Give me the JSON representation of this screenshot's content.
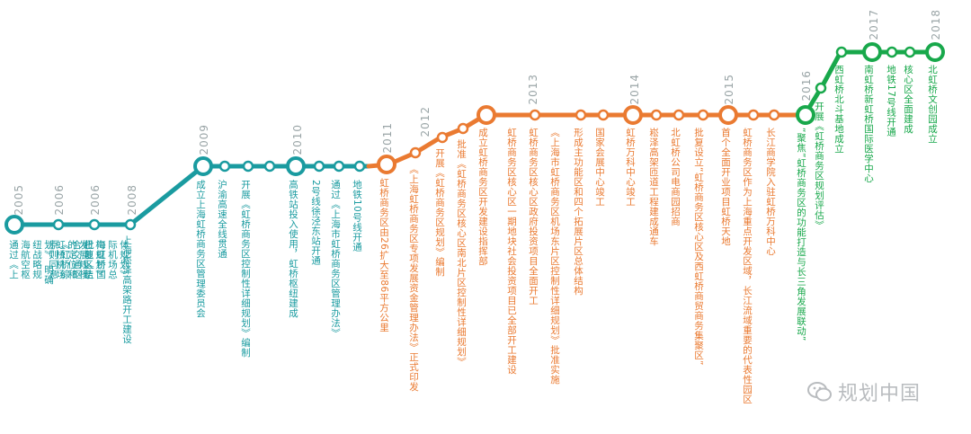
{
  "timeline": {
    "colors": {
      "teal": "#1a9ba0",
      "orange": "#ea7a31",
      "green": "#18a84b",
      "watermark": "#b9bcbf"
    },
    "years": [
      "2005",
      "2006",
      "2006",
      "2008",
      "2009",
      "2010",
      "2011",
      "2012",
      "2013",
      "2014",
      "2015",
      "2016",
      "2017",
      "2018"
    ],
    "events": [
      {
        "id": "e2005",
        "lines": [
          "通过《上",
          "海航空枢",
          "纽战略规",
          "划》，明确",
          "虹桥机场",
          "的定位和",
          "发展规模"
        ]
      },
      {
        "id": "e2006a",
        "lines": [
          "原则同意",
          "《虹桥综",
          "合交通枢",
          "纽地区结",
          "构规划》"
        ]
      },
      {
        "id": "e2006b",
        "lines": [
          "批复《上",
          "海虹桥国",
          "际机场总",
          "体规划》"
        ]
      },
      {
        "id": "e2008",
        "lines": [
          "上海崧泽高架路开工建设"
        ]
      },
      {
        "id": "e2009a",
        "lines": [
          "成立上海虹桥商务区管理委员会"
        ]
      },
      {
        "id": "e2009b",
        "lines": [
          "沪渝高速全线贯通"
        ]
      },
      {
        "id": "e2009c",
        "lines": [
          "开展《虹桥商务区控制性详细规划》编制"
        ]
      },
      {
        "id": "e2010a",
        "lines": [
          "高铁站投入使用，虹桥枢纽建成"
        ]
      },
      {
        "id": "e2010b",
        "lines": [
          "2号线徐泾东站开通"
        ]
      },
      {
        "id": "e2010c",
        "lines": [
          "通过《上海市虹桥商务区管理办法》"
        ]
      },
      {
        "id": "e2010d",
        "lines": [
          "地铁10号线开通"
        ]
      },
      {
        "id": "e2011",
        "lines": [
          "虹桥商务区由26扩大至86平方公里"
        ]
      },
      {
        "id": "e2011b",
        "lines": [
          "《上海虹桥商务区专项发展资金管理办法》正式印发"
        ]
      },
      {
        "id": "e2012a",
        "lines": [
          "开展《虹桥商务区规划》编制"
        ]
      },
      {
        "id": "e2012b",
        "lines": [
          "批准《虹桥商务区核心区南北片区控制性详细规划》"
        ]
      },
      {
        "id": "e2012c",
        "lines": [
          "成立虹桥商务区开发建设指挥部"
        ]
      },
      {
        "id": "e2013a",
        "lines": [
          "虹桥商务区核心区一期地块社会投资项目已全部开工建设"
        ]
      },
      {
        "id": "e2013b",
        "lines": [
          "虹桥商务区核心区政府投资项目全面开工"
        ]
      },
      {
        "id": "e2013c",
        "lines": [
          "《上海市虹桥商务区机场东片区控制性详细规划》批准实施"
        ]
      },
      {
        "id": "e2013d",
        "lines": [
          "形成主功能区和四个拓展片区总体结构"
        ]
      },
      {
        "id": "e2014a",
        "lines": [
          "国家会展中心竣工"
        ]
      },
      {
        "id": "e2014b",
        "lines": [
          "虹桥万科中心竣工"
        ]
      },
      {
        "id": "e2014c",
        "lines": [
          "崧泽高架匝道工程建成通车"
        ]
      },
      {
        "id": "e2014d",
        "lines": [
          "北虹桥公司电商园招商"
        ]
      },
      {
        "id": "e2014e",
        "lines": [
          "批复设立“虹桥商务区核心区及西虹桥商贸商务集聚区”"
        ]
      },
      {
        "id": "e2015a",
        "lines": [
          "首个全面开业项目虹桥天地"
        ]
      },
      {
        "id": "e2015b",
        "lines": [
          "虹桥商务区作为上海重点开发区域，长江流域重要的代表性园区"
        ]
      },
      {
        "id": "e2015c",
        "lines": [
          "长江商学院入驻虹桥万科中心"
        ]
      },
      {
        "id": "e2016a",
        "lines": [
          "“聚焦”虹桥商务区的功能打造与长三角发展联动”"
        ]
      },
      {
        "id": "e2016b",
        "lines": [
          "开展《虹桥商务区规划评估》"
        ]
      },
      {
        "id": "e2016c",
        "lines": [
          "西虹桥北斗基地成立"
        ]
      },
      {
        "id": "e2017a",
        "lines": [
          "南虹桥新虹桥国际医学中心"
        ]
      },
      {
        "id": "e2017b",
        "lines": [
          "地铁17号线开通"
        ]
      },
      {
        "id": "e2017c",
        "lines": [
          "核心区全面建成"
        ]
      },
      {
        "id": "e2018",
        "lines": [
          "北虹桥文创园成立"
        ]
      }
    ]
  },
  "watermark": {
    "text": "规划中国",
    "icon": "wechat-icon"
  }
}
